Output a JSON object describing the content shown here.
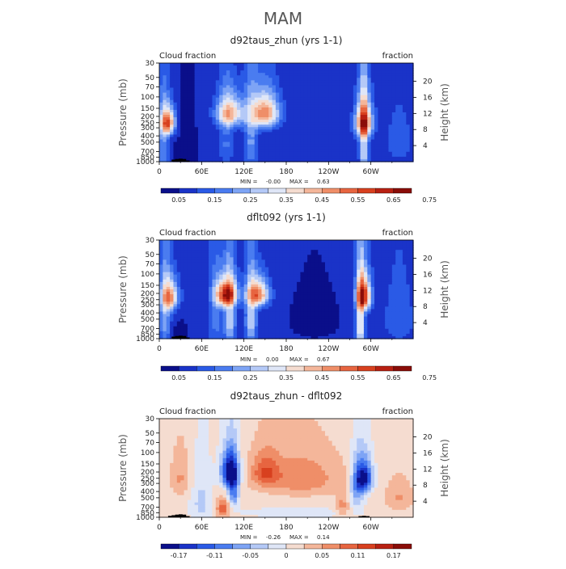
{
  "page_title": "MAM",
  "chart_data": [
    {
      "type": "heatmap",
      "title": "d92taus_zhun (yrs 1-1)",
      "left_label": "Cloud fraction",
      "right_label": "fraction",
      "ylabel": "Pressure (mb)",
      "y2label": "Height (km)",
      "xlabel": "",
      "x_ticks": [
        "0",
        "60E",
        "120E",
        "180",
        "120W",
        "60W"
      ],
      "x_tick_lon": [
        0,
        60,
        120,
        180,
        240,
        300
      ],
      "xlim": [
        0,
        360
      ],
      "y_ticks": [
        "30",
        "50",
        "70",
        "100",
        "150",
        "200",
        "250",
        "300",
        "400",
        "500",
        "700",
        "850",
        "1000"
      ],
      "y_tick_p": [
        30,
        50,
        70,
        100,
        150,
        200,
        250,
        300,
        400,
        500,
        700,
        850,
        1000
      ],
      "ylim": [
        30,
        1000
      ],
      "y2_ticks": [
        "20",
        "16",
        "12",
        "8",
        "4"
      ],
      "y2_tick_km": [
        20,
        16,
        12,
        8,
        4
      ],
      "stats_min_label": "MIN =",
      "stats_min": "-0.00",
      "stats_max_label": "MAX =",
      "stats_max": "0.63",
      "colorbar_labels": [
        "0.05",
        "0.15",
        "0.25",
        "0.35",
        "0.45",
        "0.55",
        "0.65",
        "0.75"
      ],
      "colorbar_colors": [
        "#0a0f8a",
        "#1a33c8",
        "#2a5ae6",
        "#4a7cf0",
        "#7ea4f5",
        "#b4c9f7",
        "#dfe6f7",
        "#f5dcd0",
        "#f4b69a",
        "#ef8e68",
        "#e76540",
        "#d8401f",
        "#b82012",
        "#8a0d08"
      ],
      "field_range": [
        0,
        0.8
      ],
      "field": {
        "background": 0.06,
        "features": [
          {
            "lon": 30,
            "p": 850,
            "dlon": 10,
            "dp": 300,
            "amp": -0.05
          },
          {
            "lon": 12,
            "p": 250,
            "dlon": 10,
            "dp": 120,
            "amp": 0.55
          },
          {
            "lon": 5,
            "p": 600,
            "dlon": 8,
            "dp": 700,
            "amp": 0.18
          },
          {
            "lon": 40,
            "p": 600,
            "dlon": 8,
            "dp": 600,
            "amp": -0.05
          },
          {
            "lon": 100,
            "p": 180,
            "dlon": 20,
            "dp": 100,
            "amp": 0.4
          },
          {
            "lon": 150,
            "p": 180,
            "dlon": 20,
            "dp": 110,
            "amp": 0.5
          },
          {
            "lon": 95,
            "p": 550,
            "dlon": 10,
            "dp": 600,
            "amp": 0.12
          },
          {
            "lon": 130,
            "p": 500,
            "dlon": 10,
            "dp": 600,
            "amp": 0.18
          },
          {
            "lon": 290,
            "p": 250,
            "dlon": 12,
            "dp": 160,
            "amp": 0.55
          },
          {
            "lon": 290,
            "p": 650,
            "dlon": 6,
            "dp": 700,
            "amp": 0.3
          },
          {
            "lon": 230,
            "p": 600,
            "dlon": 40,
            "dp": 500,
            "amp": 0.02
          },
          {
            "lon": 340,
            "p": 500,
            "dlon": 25,
            "dp": 600,
            "amp": 0.08
          }
        ]
      },
      "terrain": [
        {
          "lon": 20,
          "top_p": 930
        },
        {
          "lon": 25,
          "top_p": 910
        },
        {
          "lon": 30,
          "top_p": 900
        },
        {
          "lon": 35,
          "top_p": 910
        },
        {
          "lon": 40,
          "top_p": 960
        }
      ]
    },
    {
      "type": "heatmap",
      "title": "dflt092 (yrs 1-1)",
      "left_label": "Cloud fraction",
      "right_label": "fraction",
      "ylabel": "Pressure (mb)",
      "y2label": "Height (km)",
      "xlabel": "",
      "x_ticks": [
        "0",
        "60E",
        "120E",
        "180",
        "120W",
        "60W"
      ],
      "x_tick_lon": [
        0,
        60,
        120,
        180,
        240,
        300
      ],
      "xlim": [
        0,
        360
      ],
      "y_ticks": [
        "30",
        "50",
        "70",
        "100",
        "150",
        "200",
        "250",
        "300",
        "400",
        "500",
        "700",
        "850",
        "1000"
      ],
      "y_tick_p": [
        30,
        50,
        70,
        100,
        150,
        200,
        250,
        300,
        400,
        500,
        700,
        850,
        1000
      ],
      "ylim": [
        30,
        1000
      ],
      "y2_ticks": [
        "20",
        "16",
        "12",
        "8",
        "4"
      ],
      "y2_tick_km": [
        20,
        16,
        12,
        8,
        4
      ],
      "stats_min_label": "MIN =",
      "stats_min": "0.00",
      "stats_max_label": "MAX =",
      "stats_max": "0.67",
      "colorbar_labels": [
        "0.05",
        "0.15",
        "0.25",
        "0.35",
        "0.45",
        "0.55",
        "0.65",
        "0.75"
      ],
      "colorbar_colors": [
        "#0a0f8a",
        "#1a33c8",
        "#2a5ae6",
        "#4a7cf0",
        "#7ea4f5",
        "#b4c9f7",
        "#dfe6f7",
        "#f5dcd0",
        "#f4b69a",
        "#ef8e68",
        "#e76540",
        "#d8401f",
        "#b82012",
        "#8a0d08"
      ],
      "field_range": [
        0,
        0.8
      ],
      "field": {
        "background": 0.07,
        "features": [
          {
            "lon": 30,
            "p": 850,
            "dlon": 10,
            "dp": 300,
            "amp": -0.05
          },
          {
            "lon": 15,
            "p": 230,
            "dlon": 12,
            "dp": 120,
            "amp": 0.45
          },
          {
            "lon": 8,
            "p": 500,
            "dlon": 8,
            "dp": 600,
            "amp": 0.2
          },
          {
            "lon": 95,
            "p": 210,
            "dlon": 15,
            "dp": 100,
            "amp": 0.6
          },
          {
            "lon": 140,
            "p": 210,
            "dlon": 15,
            "dp": 100,
            "amp": 0.5
          },
          {
            "lon": 100,
            "p": 550,
            "dlon": 8,
            "dp": 600,
            "amp": 0.25
          },
          {
            "lon": 130,
            "p": 550,
            "dlon": 8,
            "dp": 600,
            "amp": 0.25
          },
          {
            "lon": 80,
            "p": 500,
            "dlon": 10,
            "dp": 700,
            "amp": 0.12
          },
          {
            "lon": 290,
            "p": 220,
            "dlon": 10,
            "dp": 130,
            "amp": 0.6
          },
          {
            "lon": 285,
            "p": 650,
            "dlon": 6,
            "dp": 700,
            "amp": 0.35
          },
          {
            "lon": 220,
            "p": 500,
            "dlon": 40,
            "dp": 500,
            "amp": -0.03
          },
          {
            "lon": 340,
            "p": 500,
            "dlon": 25,
            "dp": 600,
            "amp": 0.08
          }
        ]
      },
      "terrain": [
        {
          "lon": 20,
          "top_p": 930
        },
        {
          "lon": 25,
          "top_p": 910
        },
        {
          "lon": 30,
          "top_p": 900
        },
        {
          "lon": 35,
          "top_p": 910
        },
        {
          "lon": 40,
          "top_p": 960
        }
      ]
    },
    {
      "type": "heatmap",
      "title": "d92taus_zhun - dflt092",
      "left_label": "Cloud fraction",
      "right_label": "fraction",
      "ylabel": "Pressure (mb)",
      "y2label": "Height (km)",
      "xlabel": "",
      "x_ticks": [
        "0",
        "60E",
        "120E",
        "180",
        "120W",
        "60W"
      ],
      "x_tick_lon": [
        0,
        60,
        120,
        180,
        240,
        300
      ],
      "xlim": [
        0,
        360
      ],
      "y_ticks": [
        "30",
        "50",
        "70",
        "100",
        "150",
        "200",
        "250",
        "300",
        "400",
        "500",
        "700",
        "850",
        "1000"
      ],
      "y_tick_p": [
        30,
        50,
        70,
        100,
        150,
        200,
        250,
        300,
        400,
        500,
        700,
        850,
        1000
      ],
      "ylim": [
        30,
        1000
      ],
      "y2_ticks": [
        "20",
        "16",
        "12",
        "8",
        "4"
      ],
      "y2_tick_km": [
        20,
        16,
        12,
        8,
        4
      ],
      "stats_min_label": "MIN =",
      "stats_min": "-0.26",
      "stats_max_label": "MAX =",
      "stats_max": "0.14",
      "colorbar_labels": [
        "-0.17",
        "-0.11",
        "-0.05",
        "0",
        "0.05",
        "0.11",
        "0.17"
      ],
      "colorbar_colors": [
        "#0a0f8a",
        "#1a33c8",
        "#2a5ae6",
        "#4a7cf0",
        "#7ea4f5",
        "#b4c9f7",
        "#dfe6f7",
        "#f5dcd0",
        "#f4b69a",
        "#ef8e68",
        "#e76540",
        "#d8401f",
        "#b82012",
        "#8a0d08"
      ],
      "field_range": [
        -0.2,
        0.2
      ],
      "field": {
        "background": 0.01,
        "features": [
          {
            "lon": 100,
            "p": 200,
            "dlon": 12,
            "dp": 120,
            "amp": -0.22
          },
          {
            "lon": 105,
            "p": 400,
            "dlon": 8,
            "dp": 250,
            "amp": -0.12
          },
          {
            "lon": 290,
            "p": 250,
            "dlon": 12,
            "dp": 140,
            "amp": -0.2
          },
          {
            "lon": 280,
            "p": 400,
            "dlon": 10,
            "dp": 300,
            "amp": -0.08
          },
          {
            "lon": 200,
            "p": 250,
            "dlon": 60,
            "dp": 200,
            "amp": 0.07
          },
          {
            "lon": 150,
            "p": 200,
            "dlon": 20,
            "dp": 120,
            "amp": 0.08
          },
          {
            "lon": 30,
            "p": 250,
            "dlon": 15,
            "dp": 200,
            "amp": 0.05
          },
          {
            "lon": 60,
            "p": 600,
            "dlon": 15,
            "dp": 500,
            "amp": -0.05
          },
          {
            "lon": 90,
            "p": 750,
            "dlon": 10,
            "dp": 250,
            "amp": 0.1
          },
          {
            "lon": 200,
            "p": 850,
            "dlon": 80,
            "dp": 150,
            "amp": -0.03
          },
          {
            "lon": 340,
            "p": 500,
            "dlon": 20,
            "dp": 300,
            "amp": 0.05
          },
          {
            "lon": 260,
            "p": 700,
            "dlon": 10,
            "dp": 300,
            "amp": 0.06
          }
        ]
      },
      "terrain": [
        {
          "lon": 15,
          "top_p": 950
        },
        {
          "lon": 20,
          "top_p": 930
        },
        {
          "lon": 25,
          "top_p": 910
        },
        {
          "lon": 30,
          "top_p": 900
        },
        {
          "lon": 35,
          "top_p": 910
        },
        {
          "lon": 40,
          "top_p": 960
        },
        {
          "lon": 285,
          "top_p": 960
        },
        {
          "lon": 290,
          "top_p": 950
        },
        {
          "lon": 295,
          "top_p": 960
        }
      ]
    }
  ]
}
